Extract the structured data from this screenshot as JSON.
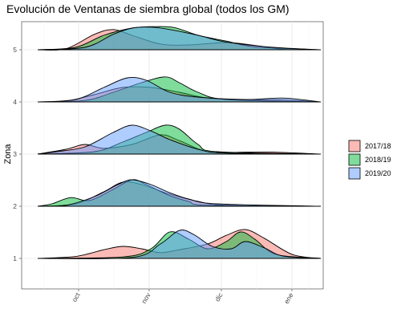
{
  "chart_data": {
    "type": "ridgeline",
    "title": "Evolución de Ventanas de siembra global (todos los GM)",
    "xlabel": "",
    "ylabel": "Zona",
    "x_ticks": [
      "oct",
      "nov",
      "dic",
      "ene"
    ],
    "y_ticks": [
      "1",
      "2",
      "3",
      "4",
      "5"
    ],
    "grid": true,
    "legend_position": "right",
    "colors": {
      "2017/18": "#f8766d",
      "2018/19": "#00ba38",
      "2019/20": "#619cff"
    },
    "series": [
      {
        "name": "2017/18"
      },
      {
        "name": "2018/19"
      },
      {
        "name": "2019/20"
      }
    ],
    "ridges": [
      {
        "zone": "5",
        "densities": {
          "2017/18": [
            [
              0,
              0
            ],
            [
              0.3,
              0.02
            ],
            [
              0.6,
              0.32
            ],
            [
              0.8,
              0.42
            ],
            [
              1.0,
              0.3
            ],
            [
              1.3,
              0.12
            ],
            [
              1.6,
              0.1
            ],
            [
              2.0,
              0.15
            ],
            [
              2.3,
              0.09
            ],
            [
              2.6,
              0.01
            ],
            [
              3.0,
              0
            ]
          ],
          "2018/19": [
            [
              0,
              0
            ],
            [
              0.4,
              0.05
            ],
            [
              0.7,
              0.3
            ],
            [
              1.0,
              0.45
            ],
            [
              1.25,
              0.48
            ],
            [
              1.45,
              0.46
            ],
            [
              1.7,
              0.3
            ],
            [
              2.0,
              0.18
            ],
            [
              2.3,
              0.06
            ],
            [
              3.0,
              0
            ]
          ],
          "2019/20": [
            [
              0,
              0
            ],
            [
              0.5,
              0.05
            ],
            [
              0.8,
              0.32
            ],
            [
              1.0,
              0.45
            ],
            [
              1.2,
              0.47
            ],
            [
              1.4,
              0.42
            ],
            [
              1.7,
              0.3
            ],
            [
              2.0,
              0.16
            ],
            [
              2.5,
              0.05
            ],
            [
              3.0,
              0
            ]
          ]
        }
      },
      {
        "zone": "4",
        "densities": {
          "2017/18": [
            [
              0,
              0
            ],
            [
              0.3,
              0.02
            ],
            [
              0.6,
              0.15
            ],
            [
              0.9,
              0.3
            ],
            [
              1.2,
              0.3
            ],
            [
              1.5,
              0.2
            ],
            [
              1.8,
              0.08
            ],
            [
              2.2,
              0.05
            ],
            [
              2.6,
              0.04
            ],
            [
              3.0,
              0
            ]
          ],
          "2018/19": [
            [
              0,
              0
            ],
            [
              0.5,
              0.03
            ],
            [
              0.8,
              0.2
            ],
            [
              1.1,
              0.4
            ],
            [
              1.35,
              0.52
            ],
            [
              1.5,
              0.4
            ],
            [
              1.7,
              0.2
            ],
            [
              2.0,
              0.05
            ],
            [
              3.0,
              0
            ]
          ],
          "2019/20": [
            [
              0,
              0
            ],
            [
              0.4,
              0.05
            ],
            [
              0.7,
              0.3
            ],
            [
              0.95,
              0.5
            ],
            [
              1.15,
              0.45
            ],
            [
              1.4,
              0.2
            ],
            [
              1.7,
              0.1
            ],
            [
              2.2,
              0.05
            ],
            [
              2.6,
              0.08
            ],
            [
              3.0,
              0
            ]
          ]
        }
      },
      {
        "zone": "3",
        "densities": {
          "2017/18": [
            [
              0,
              0
            ],
            [
              0.3,
              0.1
            ],
            [
              0.5,
              0.2
            ],
            [
              0.7,
              0.12
            ],
            [
              1.0,
              0.2
            ],
            [
              1.3,
              0.4
            ],
            [
              1.5,
              0.28
            ],
            [
              1.8,
              0.05
            ],
            [
              2.2,
              0.04
            ],
            [
              2.5,
              0.04
            ],
            [
              3.0,
              0
            ]
          ],
          "2018/19": [
            [
              0,
              0
            ],
            [
              0.6,
              0.05
            ],
            [
              0.9,
              0.25
            ],
            [
              1.15,
              0.45
            ],
            [
              1.35,
              0.6
            ],
            [
              1.5,
              0.52
            ],
            [
              1.7,
              0.2
            ],
            [
              1.9,
              0.05
            ],
            [
              3.0,
              0
            ]
          ],
          "2019/20": [
            [
              0,
              0
            ],
            [
              0.2,
              0.05
            ],
            [
              0.5,
              0.15
            ],
            [
              0.8,
              0.45
            ],
            [
              1.0,
              0.6
            ],
            [
              1.2,
              0.48
            ],
            [
              1.4,
              0.3
            ],
            [
              1.7,
              0.1
            ],
            [
              2.0,
              0.02
            ],
            [
              3.0,
              0
            ]
          ]
        }
      },
      {
        "zone": "2",
        "densities": {
          "2017/18": [
            [
              0,
              0
            ],
            [
              0.4,
              0.05
            ],
            [
              0.7,
              0.3
            ],
            [
              0.9,
              0.5
            ],
            [
              1.1,
              0.45
            ],
            [
              1.4,
              0.25
            ],
            [
              1.7,
              0.1
            ],
            [
              2.0,
              0.02
            ],
            [
              3.0,
              0
            ]
          ],
          "2018/19": [
            [
              0,
              0
            ],
            [
              0.15,
              0.05
            ],
            [
              0.35,
              0.18
            ],
            [
              0.55,
              0.12
            ],
            [
              0.8,
              0.35
            ],
            [
              1.0,
              0.55
            ],
            [
              1.15,
              0.45
            ],
            [
              1.4,
              0.22
            ],
            [
              1.6,
              0.1
            ],
            [
              1.8,
              0.02
            ],
            [
              3.0,
              0
            ]
          ],
          "2019/20": [
            [
              0,
              0
            ],
            [
              0.3,
              0.02
            ],
            [
              0.6,
              0.2
            ],
            [
              0.85,
              0.45
            ],
            [
              1.0,
              0.55
            ],
            [
              1.2,
              0.45
            ],
            [
              1.4,
              0.28
            ],
            [
              1.6,
              0.15
            ],
            [
              1.9,
              0.05
            ],
            [
              3.0,
              0
            ]
          ]
        }
      },
      {
        "zone": "1",
        "densities": {
          "2017/18": [
            [
              0,
              0
            ],
            [
              0.4,
              0.04
            ],
            [
              0.7,
              0.18
            ],
            [
              0.9,
              0.25
            ],
            [
              1.1,
              0.2
            ],
            [
              1.3,
              0.12
            ],
            [
              1.5,
              0.18
            ],
            [
              1.8,
              0.3
            ],
            [
              2.0,
              0.48
            ],
            [
              2.2,
              0.6
            ],
            [
              2.4,
              0.42
            ],
            [
              2.7,
              0.08
            ],
            [
              3.0,
              0
            ]
          ],
          "2018/19": [
            [
              0,
              0
            ],
            [
              0.9,
              0.03
            ],
            [
              1.2,
              0.2
            ],
            [
              1.4,
              0.55
            ],
            [
              1.6,
              0.4
            ],
            [
              1.8,
              0.2
            ],
            [
              2.0,
              0.35
            ],
            [
              2.15,
              0.55
            ],
            [
              2.3,
              0.4
            ],
            [
              2.5,
              0.1
            ],
            [
              2.8,
              0.02
            ],
            [
              3.0,
              0
            ]
          ],
          "2019/20": [
            [
              0,
              0
            ],
            [
              1.0,
              0.02
            ],
            [
              1.3,
              0.3
            ],
            [
              1.5,
              0.58
            ],
            [
              1.65,
              0.5
            ],
            [
              1.85,
              0.25
            ],
            [
              2.05,
              0.2
            ],
            [
              2.2,
              0.35
            ],
            [
              2.4,
              0.22
            ],
            [
              2.6,
              0.05
            ],
            [
              3.0,
              0
            ]
          ]
        }
      }
    ]
  }
}
